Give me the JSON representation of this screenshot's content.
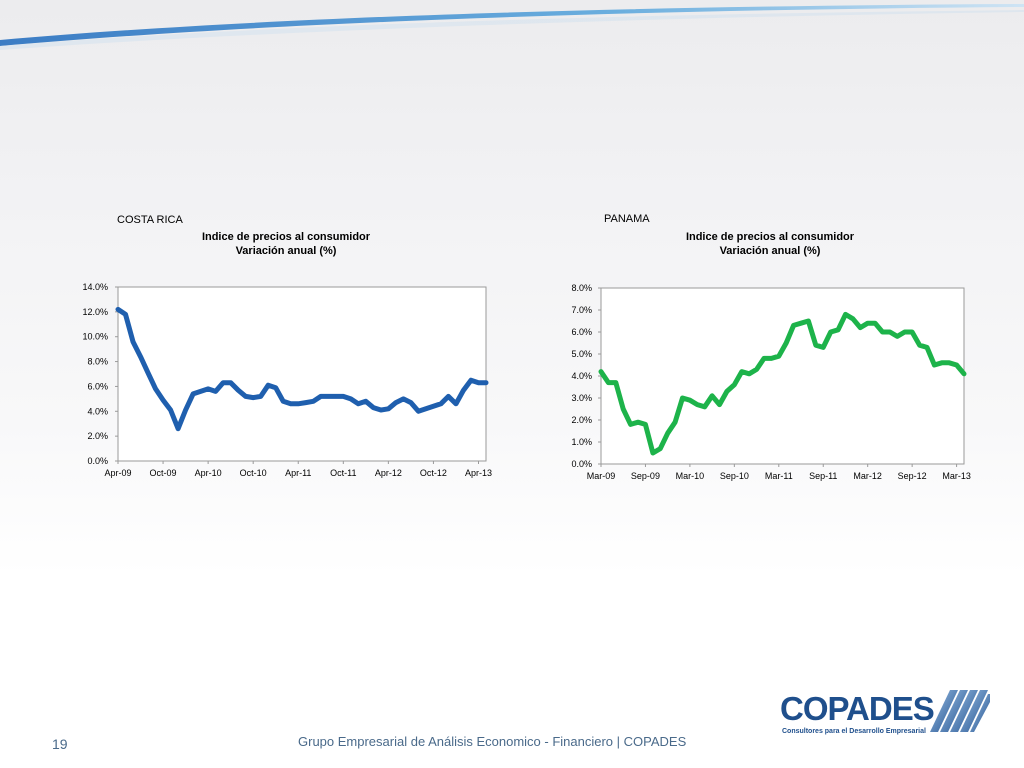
{
  "page": {
    "number": "19",
    "footer": "Grupo Empresarial de Análisis Economico - Financiero | COPADES",
    "logo_text": "COPADES",
    "logo_tagline": "Consultores para el Desarrollo Empresarial",
    "colors": {
      "accent": "#1f5fae",
      "swoosh": "#5aa0d8"
    }
  },
  "chart_data": [
    {
      "type": "line",
      "region": "COSTA RICA",
      "title": "Indice de precios al consumidor",
      "subtitle": "Variación anual (%)",
      "x_tick_labels": [
        "Apr-09",
        "Oct-09",
        "Apr-10",
        "Oct-10",
        "Apr-11",
        "Oct-11",
        "Apr-12",
        "Oct-12",
        "Apr-13"
      ],
      "x_start": "2009-04",
      "y_tick_labels": [
        "0.0%",
        "2.0%",
        "4.0%",
        "6.0%",
        "8.0%",
        "10.0%",
        "12.0%",
        "14.0%"
      ],
      "ylim": [
        0,
        14
      ],
      "color": "#1f5fae",
      "legend": "none",
      "grid": false,
      "series": [
        {
          "values": [
            12.2,
            11.8,
            9.6,
            8.4,
            7.1,
            5.8,
            4.9,
            4.1,
            2.6,
            4.1,
            5.4,
            5.6,
            5.8,
            5.6,
            6.3,
            6.3,
            5.7,
            5.2,
            5.1,
            5.2,
            6.1,
            5.9,
            4.8,
            4.6,
            4.6,
            4.7,
            4.8,
            5.2,
            5.2,
            5.2,
            5.2,
            5.0,
            4.6,
            4.8,
            4.3,
            4.1,
            4.2,
            4.7,
            5.0,
            4.7,
            4.0,
            4.2,
            4.4,
            4.6,
            5.2,
            4.6,
            5.7,
            6.5,
            6.3,
            6.3
          ]
        }
      ]
    },
    {
      "type": "line",
      "region": "PANAMA",
      "title": "Indice de precios al consumidor",
      "subtitle": "Variación anual (%)",
      "x_tick_labels": [
        "Mar-09",
        "Sep-09",
        "Mar-10",
        "Sep-10",
        "Mar-11",
        "Sep-11",
        "Mar-12",
        "Sep-12",
        "Mar-13"
      ],
      "x_start": "2009-03",
      "y_tick_labels": [
        "0.0%",
        "1.0%",
        "2.0%",
        "3.0%",
        "4.0%",
        "5.0%",
        "6.0%",
        "7.0%",
        "8.0%"
      ],
      "ylim": [
        0,
        8
      ],
      "color": "#1db34a",
      "legend": "none",
      "grid": false,
      "series": [
        {
          "values": [
            4.2,
            3.7,
            3.7,
            2.5,
            1.8,
            1.9,
            1.8,
            0.5,
            0.7,
            1.4,
            1.9,
            3.0,
            2.9,
            2.7,
            2.6,
            3.1,
            2.7,
            3.3,
            3.6,
            4.2,
            4.1,
            4.3,
            4.8,
            4.8,
            4.9,
            5.5,
            6.3,
            6.4,
            6.5,
            5.4,
            5.3,
            6.0,
            6.1,
            6.8,
            6.6,
            6.2,
            6.4,
            6.4,
            6.0,
            6.0,
            5.8,
            6.0,
            6.0,
            5.4,
            5.3,
            4.5,
            4.6,
            4.6,
            4.5,
            4.1
          ]
        }
      ]
    }
  ]
}
